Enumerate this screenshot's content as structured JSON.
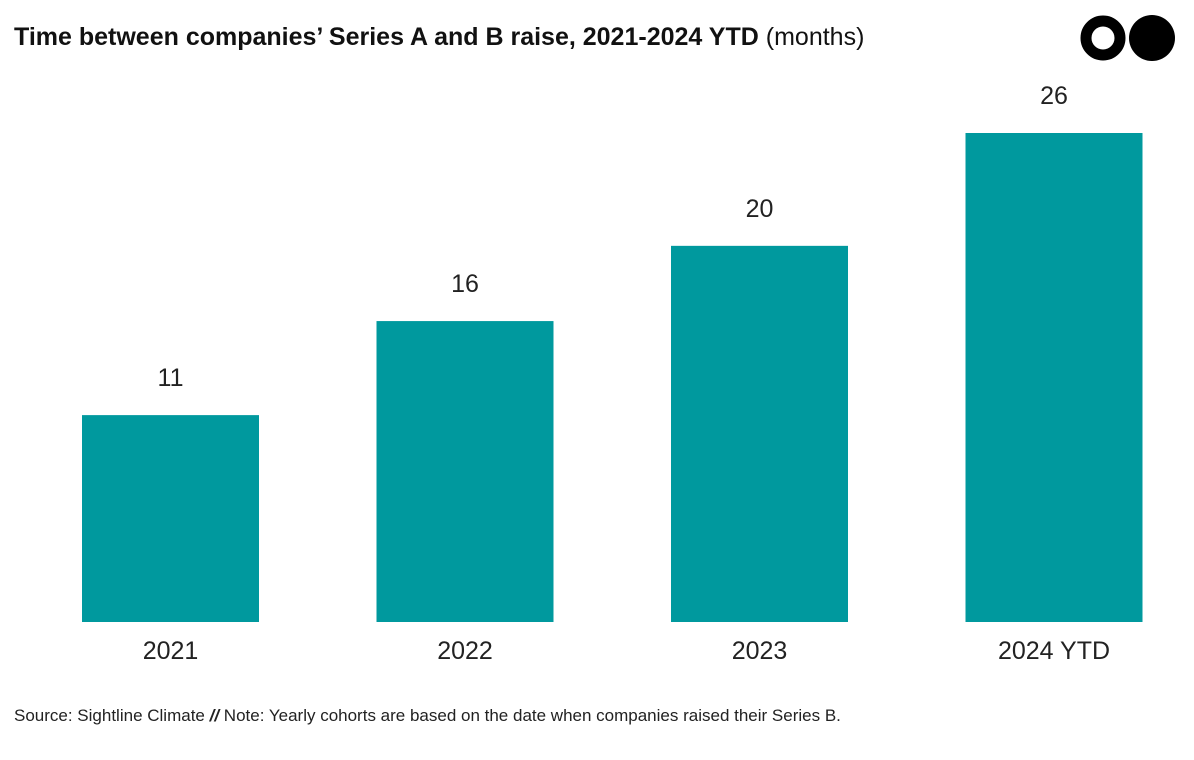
{
  "header": {
    "title": "Time between companies’ Series A and B raise, 2021-2024 YTD",
    "unit": "(months)"
  },
  "logo": {
    "icon": "two-dot-logo-icon"
  },
  "chart_data": {
    "type": "bar",
    "title": "Time between companies’ Series A and B raise, 2021-2024 YTD (months)",
    "categories": [
      "2021",
      "2022",
      "2023",
      "2024 YTD"
    ],
    "values": [
      11,
      16,
      20,
      26
    ],
    "xlabel": "",
    "ylabel": "",
    "ylim": [
      0,
      26
    ],
    "grid": false,
    "legend": "none",
    "bar_color": "#00999e"
  },
  "footer": {
    "source": "Source: Sightline Climate",
    "separator": "//",
    "note": "Note: Yearly cohorts are based on the date when companies raised their Series B."
  }
}
